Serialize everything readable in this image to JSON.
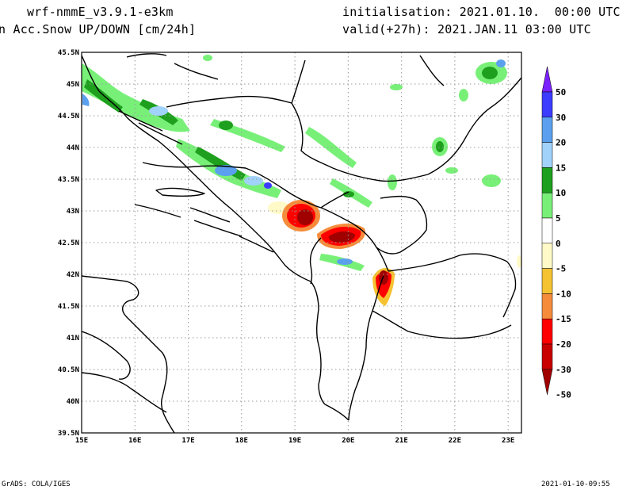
{
  "header": {
    "model": "wrf-nmmE_v3.9.1-e3km",
    "field": "n Acc.Snow UP/DOWN [cm/24h]",
    "init": "initialisation: 2021.01.10.  00:00 UTC",
    "valid": "valid(+27h): 2021.JAN.11 03:00 UTC"
  },
  "map": {
    "lon_range": [
      15.0,
      23.25
    ],
    "lat_range": [
      39.5,
      45.5
    ],
    "lat_ticks": [
      "45.5N",
      "45N",
      "44.5N",
      "44N",
      "43.5N",
      "43N",
      "42.5N",
      "42N",
      "41.5N",
      "41N",
      "40.5N",
      "40N",
      "39.5N"
    ],
    "lon_ticks": [
      "15E",
      "16E",
      "17E",
      "18E",
      "19E",
      "20E",
      "21E",
      "22E",
      "23E"
    ],
    "grid": true
  },
  "colorbar": {
    "labels": [
      "50",
      "30",
      "20",
      "15",
      "10",
      "5",
      "0",
      "-5",
      "-10",
      "-15",
      "-20",
      "-30",
      "-50"
    ],
    "colors": [
      "#7a21ff",
      "#3c3cff",
      "#5aa0ee",
      "#a0d2fa",
      "#1ea01e",
      "#78f078",
      "#ffffff",
      "#fffac8",
      "#f5c232",
      "#f58c3c",
      "#ff0000",
      "#c80000",
      "#a00000"
    ]
  },
  "footer": {
    "left": "GrADS: COLA/IGES",
    "right": "2021-01-10-09:55"
  }
}
